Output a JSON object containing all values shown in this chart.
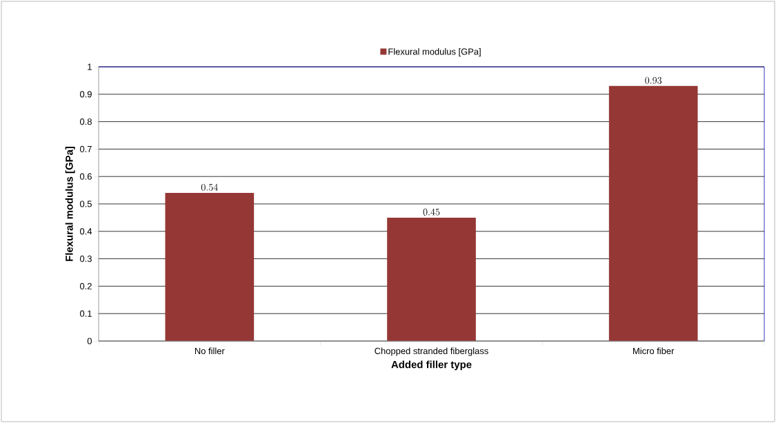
{
  "chart_data": {
    "type": "bar",
    "categories": [
      "No filler",
      "Chopped stranded fiberglass",
      "Micro fiber"
    ],
    "series": [
      {
        "name": "Flexural modulus [GPa]",
        "color": "#953735",
        "values": [
          0.54,
          0.45,
          0.93
        ]
      }
    ],
    "xlabel": "Added filler type",
    "ylabel": "Flexural modulus [GPa]",
    "ylim": [
      0,
      1
    ],
    "yticks": [
      0,
      0.1,
      0.2,
      0.3,
      0.4,
      0.5,
      0.6,
      0.7,
      0.8,
      0.9,
      1
    ],
    "grid": "y",
    "legend": "top",
    "data_labels": true
  }
}
